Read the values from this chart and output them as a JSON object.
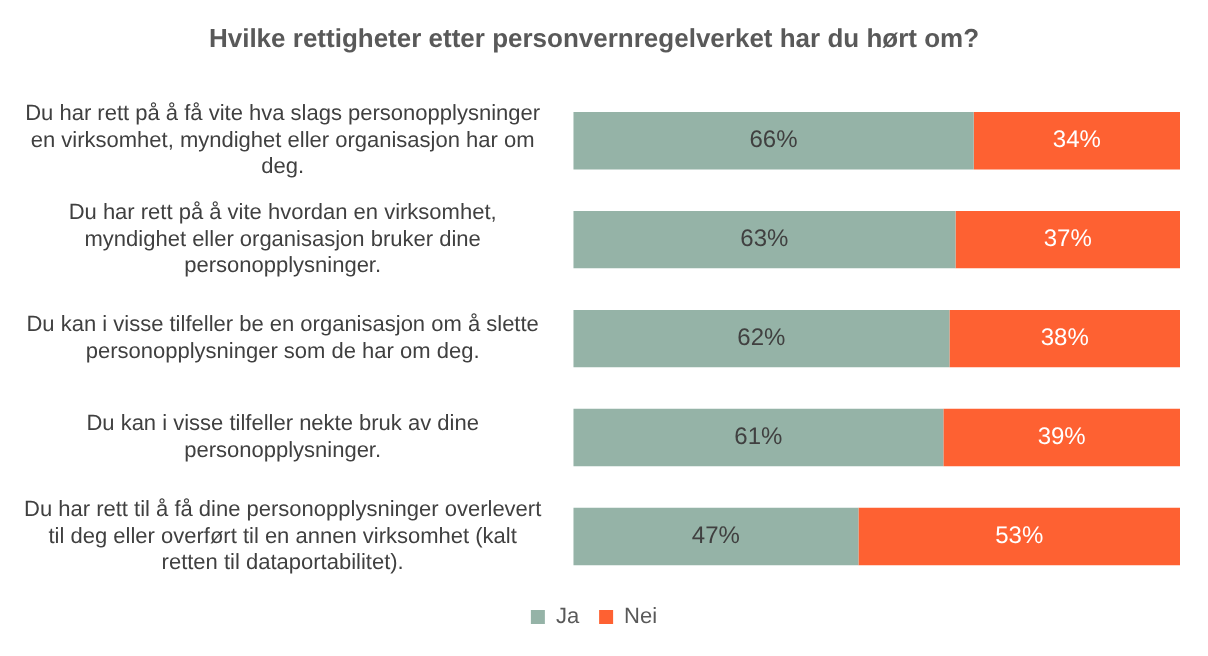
{
  "chart_data": {
    "type": "bar",
    "orientation": "horizontal",
    "stacked": true,
    "title": "Hvilke rettigheter etter personvernregelverket har du hørt om?",
    "categories": [
      "Du har rett på å få vite hva slags personopplysninger en virksomhet, myndighet eller organisasjon har om deg.",
      "Du har rett på å vite hvordan en virksomhet, myndighet eller organisasjon bruker dine personopplysninger.",
      "Du kan i visse tilfeller be en organisasjon om å slette personopplysninger som de har om deg.",
      "Du kan i visse tilfeller nekte bruk av dine personopplysninger.",
      "Du har rett til å få dine personopplysninger overlevert til deg eller overført til en annen virksomhet (kalt retten til dataportabilitet)."
    ],
    "series": [
      {
        "name": "Ja",
        "color": "#95b3a7",
        "values": [
          66,
          63,
          62,
          61,
          47
        ],
        "value_labels": [
          "66%",
          "63%",
          "62%",
          "61%",
          "47%"
        ]
      },
      {
        "name": "Nei",
        "color": "#fe6132",
        "values": [
          34,
          37,
          38,
          39,
          53
        ],
        "value_labels": [
          "34%",
          "37%",
          "38%",
          "39%",
          "53%"
        ]
      }
    ],
    "xlim": [
      0,
      100
    ],
    "tick_labels": "y",
    "legend": "bottom"
  }
}
